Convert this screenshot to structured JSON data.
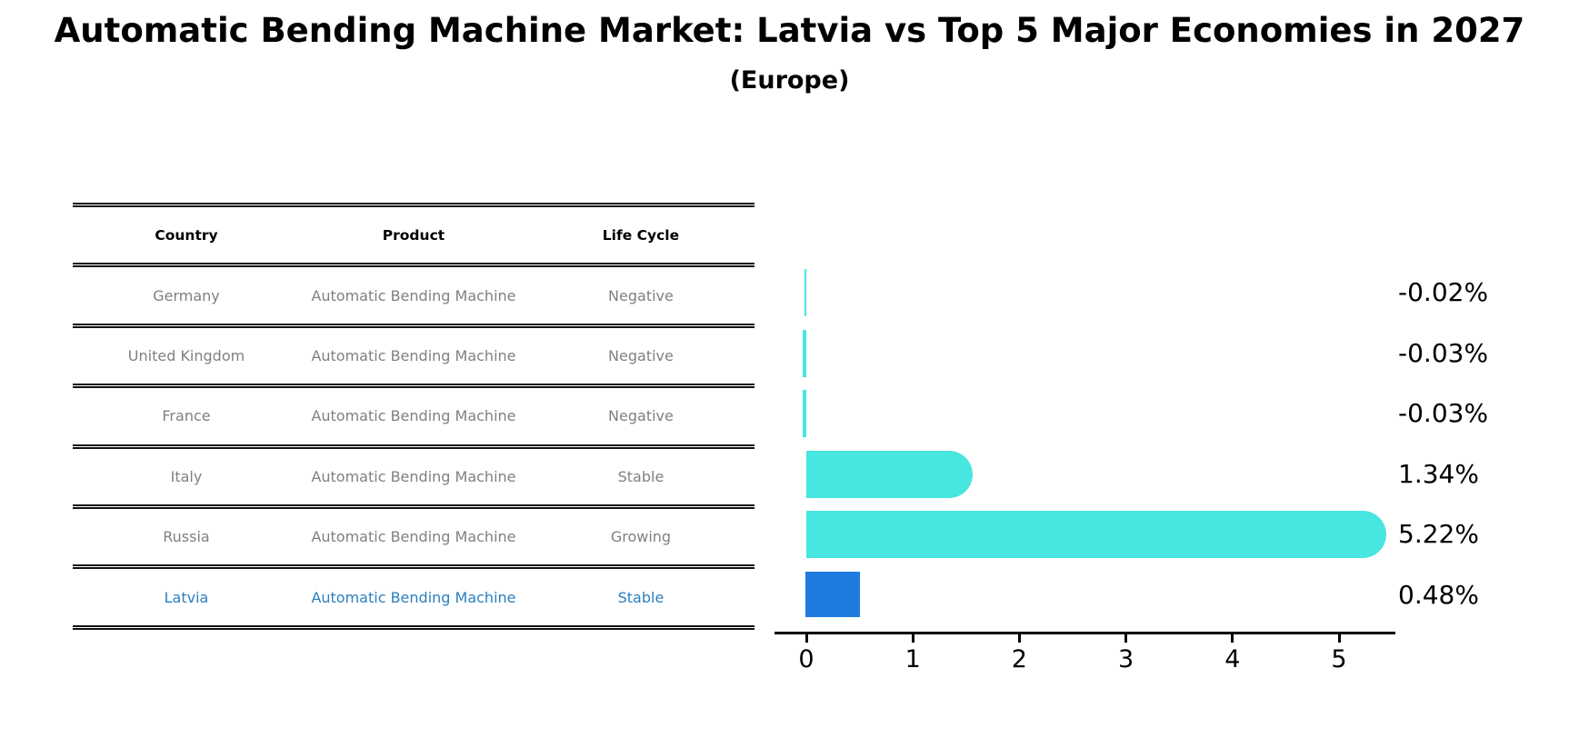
{
  "title": "Automatic Bending Machine Market: Latvia vs Top 5 Major Economies in 2027",
  "subtitle": "(Europe)",
  "table": {
    "headers": {
      "country": "Country",
      "product": "Product",
      "life_cycle": "Life Cycle"
    },
    "rows": [
      {
        "country": "Germany",
        "product": "Automatic Bending Machine",
        "life_cycle": "Negative",
        "highlighted": false
      },
      {
        "country": "United Kingdom",
        "product": "Automatic Bending Machine",
        "life_cycle": "Negative",
        "highlighted": false
      },
      {
        "country": "France",
        "product": "Automatic Bending Machine",
        "life_cycle": "Negative",
        "highlighted": false
      },
      {
        "country": "Italy",
        "product": "Automatic Bending Machine",
        "life_cycle": "Stable",
        "highlighted": false
      },
      {
        "country": "Russia",
        "product": "Automatic Bending Machine",
        "life_cycle": "Growing",
        "highlighted": false
      },
      {
        "country": "Latvia",
        "product": "Automatic Bending Machine",
        "life_cycle": "Stable",
        "highlighted": true
      }
    ]
  },
  "chart_data": {
    "type": "bar",
    "orientation": "horizontal",
    "categories": [
      "Germany",
      "United Kingdom",
      "France",
      "Italy",
      "Russia",
      "Latvia"
    ],
    "values": [
      -0.02,
      -0.03,
      -0.03,
      1.34,
      5.22,
      0.48
    ],
    "value_labels": [
      "-0.02%",
      "-0.03%",
      "-0.03%",
      "1.34%",
      "5.22%",
      "0.48%"
    ],
    "tick_labels": [
      "0",
      "1",
      "2",
      "3",
      "4",
      "5"
    ],
    "xlim": [
      -0.3,
      5.53
    ],
    "grid": false,
    "legend": "none",
    "bar_color": "#47E6E0",
    "highlight_index": 5,
    "highlight_color": "#1E7CE0",
    "highlight_border_color": "#1E7CE0",
    "axis_color": "#000000",
    "value_label_color": "#000000",
    "table_text_color": "#808080",
    "table_header_color": "#000000",
    "highlight_text_color": "#2B7FBE"
  }
}
